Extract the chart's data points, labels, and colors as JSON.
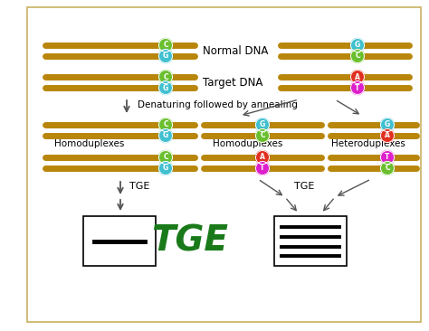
{
  "bg_color": "#ffffff",
  "border_color": "#c8b060",
  "dna_color": "#b8860b",
  "colors": {
    "C_green": "#6abf2e",
    "G_cyan": "#40c0d0",
    "A_red": "#e03020",
    "T_magenta": "#dd20cc"
  },
  "labels": {
    "normal_dna": "Normal DNA",
    "target_dna": "Target DNA",
    "denaturing": "Denaturing followed by annealing",
    "homo1": "Homoduplexes",
    "homo2": "Homoduplexes",
    "hetero": "Heteroduplexes",
    "tge_left": "TGE",
    "tge_right": "TGE",
    "tge_big": "TGE"
  }
}
